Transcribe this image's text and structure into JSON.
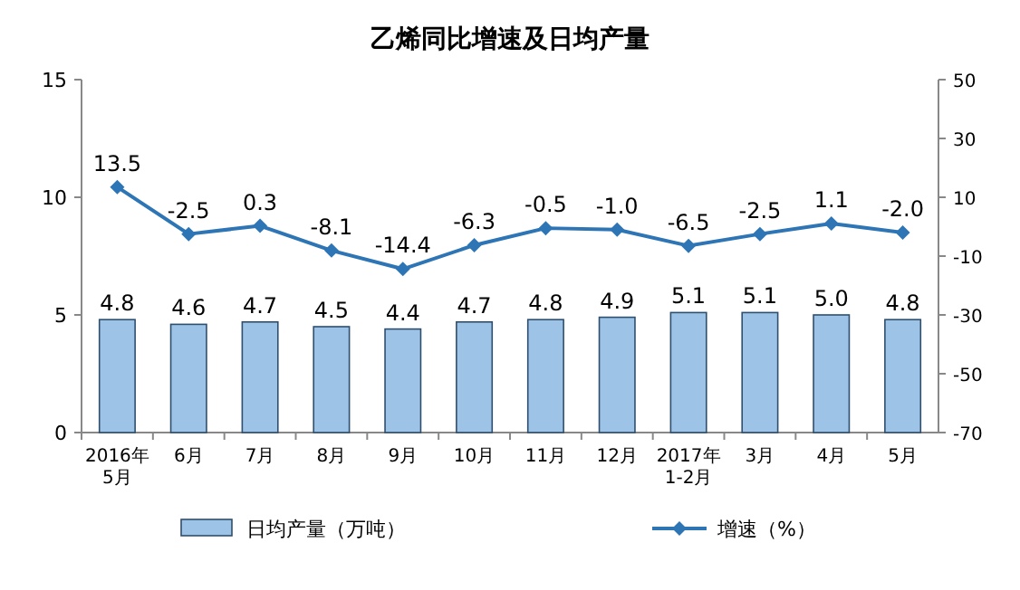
{
  "chart_data": {
    "type": "bar",
    "title": "乙烯同比增速及日均产量",
    "categories": [
      "2016年\n5月",
      "6月",
      "7月",
      "8月",
      "9月",
      "10月",
      "11月",
      "12月",
      "2017年\n1-2月",
      "3月",
      "4月",
      "5月"
    ],
    "series": [
      {
        "name": "日均产量（万吨）",
        "color": "#9dc3e6",
        "values": [
          4.8,
          4.6,
          4.7,
          4.5,
          4.4,
          4.7,
          4.8,
          4.9,
          5.1,
          5.1,
          5.0,
          4.8
        ],
        "value_labels": [
          "4.8",
          "4.6",
          "4.7",
          "4.5",
          "4.4",
          "4.7",
          "4.8",
          "4.9",
          "5.1",
          "5.1",
          "5.0",
          "4.8"
        ]
      },
      {
        "name": "增速（%）",
        "type": "line",
        "axis": "y2",
        "color": "#2e75b6",
        "values": [
          13.5,
          -2.5,
          0.3,
          -8.1,
          -14.4,
          -6.3,
          -0.5,
          -1.0,
          -6.5,
          -2.5,
          1.1,
          -2.0
        ],
        "value_labels": [
          "13.5",
          "-2.5",
          "0.3",
          "-8.1",
          "-14.4",
          "-6.3",
          "-0.5",
          "-1.0",
          "-6.5",
          "-2.5",
          "1.1",
          "-2.0"
        ]
      }
    ],
    "ylim": [
      0,
      15
    ],
    "yticks": [
      0,
      5,
      10,
      15
    ],
    "y2lim": [
      -70,
      50
    ],
    "y2ticks": [
      -70,
      -50,
      -30,
      -10,
      10,
      30,
      50
    ],
    "legend": "bottom",
    "marker": "diamond"
  }
}
